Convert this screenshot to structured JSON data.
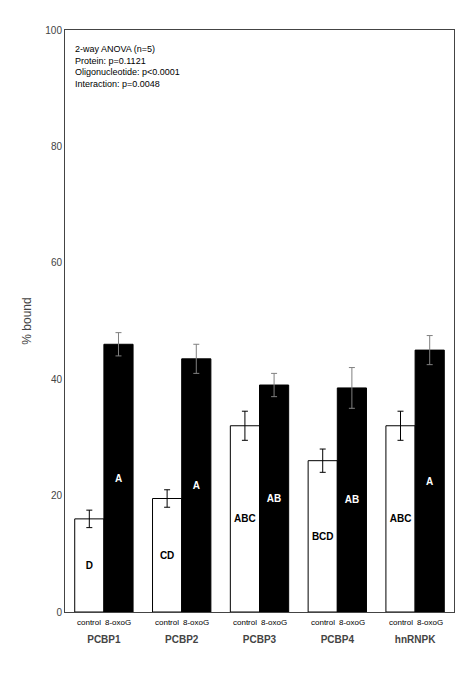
{
  "chart_data": {
    "type": "bar",
    "categories": [
      "PCBP1",
      "PCBP2",
      "PCBP3",
      "PCBP4",
      "hnRNPK"
    ],
    "series": [
      {
        "name": "control",
        "color": "#ffffff",
        "values": [
          16.0,
          19.5,
          32.0,
          26.0,
          32.0
        ],
        "errors": [
          1.5,
          1.5,
          2.5,
          2.0,
          2.5
        ],
        "annotations": [
          "D",
          "CD",
          "ABC",
          "BCD",
          "ABC"
        ]
      },
      {
        "name": "8-oxoG",
        "color": "#000000",
        "values": [
          46.0,
          43.5,
          39.0,
          38.5,
          45.0
        ],
        "errors": [
          2.0,
          2.5,
          2.0,
          3.5,
          2.5
        ],
        "annotations": [
          "A",
          "A",
          "AB",
          "AB",
          "A"
        ]
      }
    ],
    "ylabel": "% bound",
    "ylim": [
      0,
      100
    ],
    "yticks": [
      0,
      20,
      40,
      60,
      80,
      100
    ],
    "grid": false,
    "annotations": [
      "2-way ANOVA (n=5)\nProtein: p=0.1121\nOligonucleotide: p<0.0001\nInteraction: p=0.0048"
    ]
  }
}
